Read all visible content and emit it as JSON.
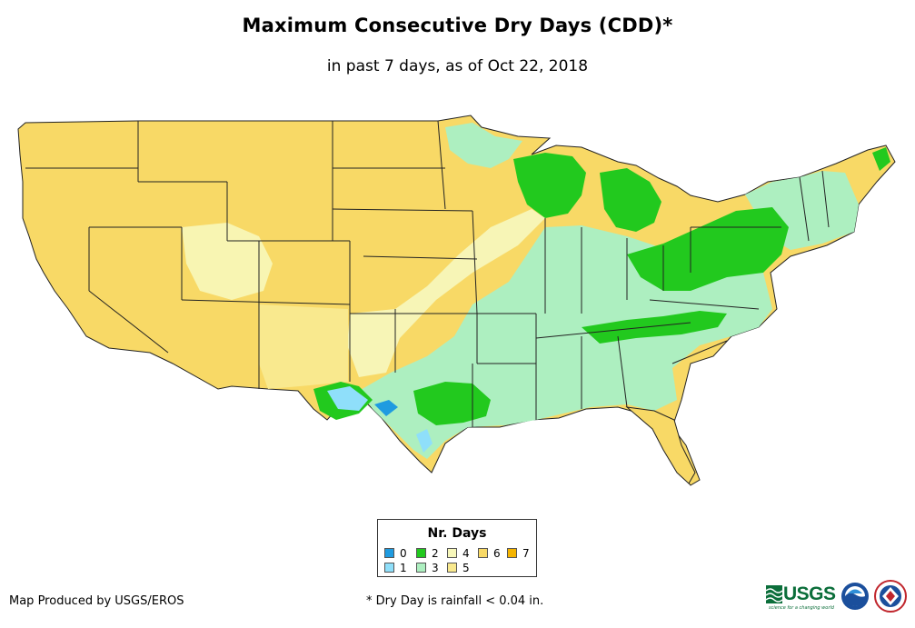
{
  "header": {
    "title": "Maximum Consecutive Dry Days (CDD)*",
    "subtitle": "in past 7 days, as of Oct 22, 2018"
  },
  "legend": {
    "title": "Nr. Days",
    "items": [
      {
        "label": "0",
        "color": "#1f9be0"
      },
      {
        "label": "1",
        "color": "#8fdffa"
      },
      {
        "label": "2",
        "color": "#22c91e"
      },
      {
        "label": "3",
        "color": "#adefc0"
      },
      {
        "label": "4",
        "color": "#f7f7ba"
      },
      {
        "label": "5",
        "color": "#f9e98e"
      },
      {
        "label": "6",
        "color": "#f8d966"
      },
      {
        "label": "7",
        "color": "#f5b400"
      }
    ]
  },
  "footer": {
    "credit": "Map Produced by USGS/EROS",
    "footnote": "* Dry Day is rainfall < 0.04 in."
  },
  "logos": {
    "usgs_word": "USGS",
    "usgs_tagline": "science for a changing world",
    "noaa_text": "NOAA",
    "nws_text": "NWS"
  },
  "map": {
    "region": "Contiguous United States",
    "base_color": "#f8d966",
    "state_border_color": "#222222"
  }
}
